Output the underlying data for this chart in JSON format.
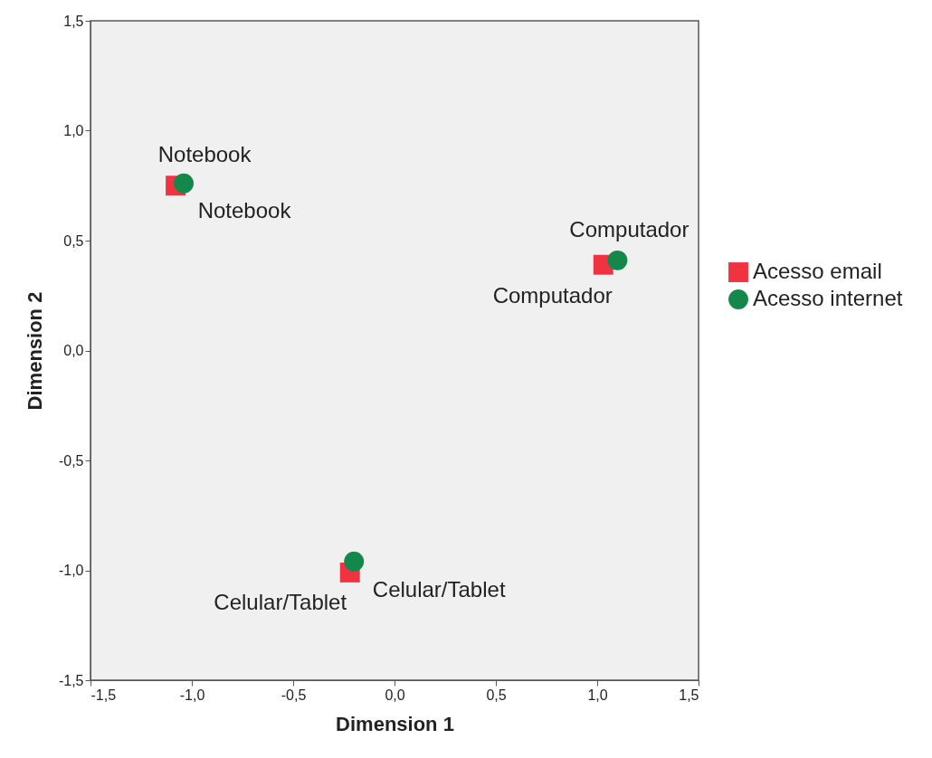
{
  "chart_data": {
    "type": "scatter",
    "xlabel": "Dimension 1",
    "ylabel": "Dimension 2",
    "xlim": [
      -1.5,
      1.5
    ],
    "ylim": [
      -1.5,
      1.5
    ],
    "xticks": [
      {
        "value": -1.5,
        "label": "-1,5"
      },
      {
        "value": -1,
        "label": "-1,0"
      },
      {
        "value": -0.5,
        "label": "-0,5"
      },
      {
        "value": 0,
        "label": "0,0"
      },
      {
        "value": 0.5,
        "label": "0,5"
      },
      {
        "value": 1,
        "label": "1,0"
      },
      {
        "value": 1.5,
        "label": "1,5"
      }
    ],
    "yticks": [
      {
        "value": -1.5,
        "label": "-1,5"
      },
      {
        "value": -1,
        "label": "-1,0"
      },
      {
        "value": -0.5,
        "label": "-0,5"
      },
      {
        "value": 0,
        "label": "0,0"
      },
      {
        "value": 0.5,
        "label": "0,5"
      },
      {
        "value": 1,
        "label": "1,0"
      },
      {
        "value": 1.5,
        "label": "1,5"
      }
    ],
    "series": [
      {
        "name": "Acesso email",
        "color": "#ef3340",
        "marker": "square",
        "x": [
          -1.08,
          1.03,
          -0.22
        ],
        "values": [
          0.75,
          0.39,
          -1.01
        ]
      },
      {
        "name": "Acesso internet",
        "color": "#13884a",
        "marker": "circle",
        "x": [
          -1.04,
          1.1,
          -0.2
        ],
        "values": [
          0.76,
          0.41,
          -0.96
        ]
      }
    ],
    "annotations": [
      {
        "text": "Notebook",
        "x": -1.08,
        "y": 0.75
      },
      {
        "text": "Computador",
        "x": 1.03,
        "y": 0.39
      },
      {
        "text": "Celular/Tablet",
        "x": -0.22,
        "y": -1.01
      },
      {
        "text": "Notebook",
        "x": -1.04,
        "y": 0.76
      },
      {
        "text": "Computador",
        "x": 1.1,
        "y": 0.41
      },
      {
        "text": "Celular/Tablet",
        "x": -0.2,
        "y": -0.96
      }
    ],
    "grid": false,
    "legend": "right"
  }
}
